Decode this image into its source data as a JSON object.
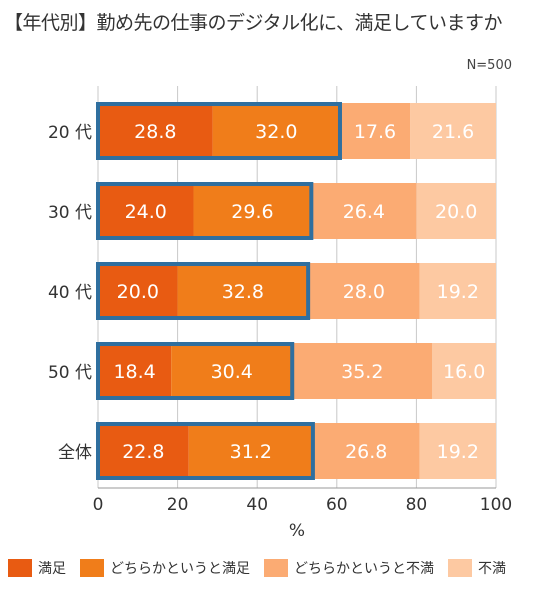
{
  "title": "【年代別】勤め先の仕事のデジタル化に、満足していますか",
  "note": "N=500",
  "colors": {
    "satisfied": "#e85b12",
    "somewhat_satisfied": "#f07d1a",
    "somewhat_dissatisfied": "#fbab73",
    "dissatisfied": "#fdc9a2",
    "highlight_border": "#2f6f9f"
  },
  "chart_data": {
    "type": "bar",
    "orientation": "horizontal",
    "stacked": true,
    "categories": [
      "20 代",
      "30 代",
      "40 代",
      "50 代",
      "全体"
    ],
    "series": [
      {
        "name": "満足",
        "values": [
          28.8,
          24.0,
          20.0,
          18.4,
          22.8
        ]
      },
      {
        "name": "どちらかというと満足",
        "values": [
          32.0,
          29.6,
          32.8,
          30.4,
          31.2
        ]
      },
      {
        "name": "どちらかというと不満",
        "values": [
          17.6,
          26.4,
          28.0,
          35.2,
          26.8
        ]
      },
      {
        "name": "不満",
        "values": [
          21.6,
          20.0,
          19.2,
          16.0,
          19.2
        ]
      }
    ],
    "xlabel": "%",
    "xlim": [
      0,
      100
    ],
    "xticks": [
      0,
      20,
      40,
      60,
      80,
      100
    ],
    "grid": true,
    "legend": "bottom",
    "highlight": "satisfied total (満足 + どちらかというと満足) outlined"
  }
}
